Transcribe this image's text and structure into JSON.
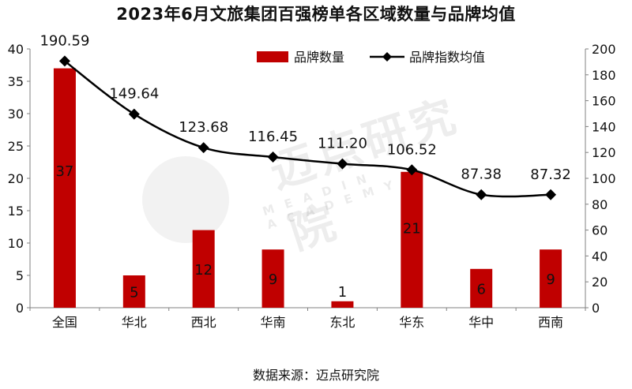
{
  "title": "2023年6月文旅集团百强榜单各区域数量与品牌均值",
  "source": "数据来源：迈点研究院",
  "watermark": {
    "text": "迈点研究院",
    "subtext": "MEADIN ACADEMY"
  },
  "colors": {
    "bar": "#c00000",
    "line": "#000000",
    "axis": "#808080"
  },
  "chart_data": {
    "type": "bar",
    "categories": [
      "全国",
      "华北",
      "西北",
      "华南",
      "东北",
      "华东",
      "华中",
      "西南"
    ],
    "series": [
      {
        "name": "品牌数量",
        "type": "bar",
        "axis": "left",
        "values": [
          37,
          5,
          12,
          9,
          1,
          21,
          6,
          9
        ]
      },
      {
        "name": "品牌指数均值",
        "type": "line",
        "axis": "right",
        "marker": "diamond",
        "values": [
          190.59,
          149.64,
          123.68,
          116.45,
          111.2,
          106.52,
          87.38,
          87.32
        ],
        "labels": [
          "190.59",
          "149.64",
          "123.68",
          "116.45",
          "111.20",
          "106.52",
          "87.38",
          "87.32"
        ]
      }
    ],
    "left_axis": {
      "min": 0,
      "max": 40,
      "step": 5
    },
    "right_axis": {
      "min": 0,
      "max": 200,
      "step": 20
    },
    "grid": false,
    "legend_position": "top-center"
  }
}
